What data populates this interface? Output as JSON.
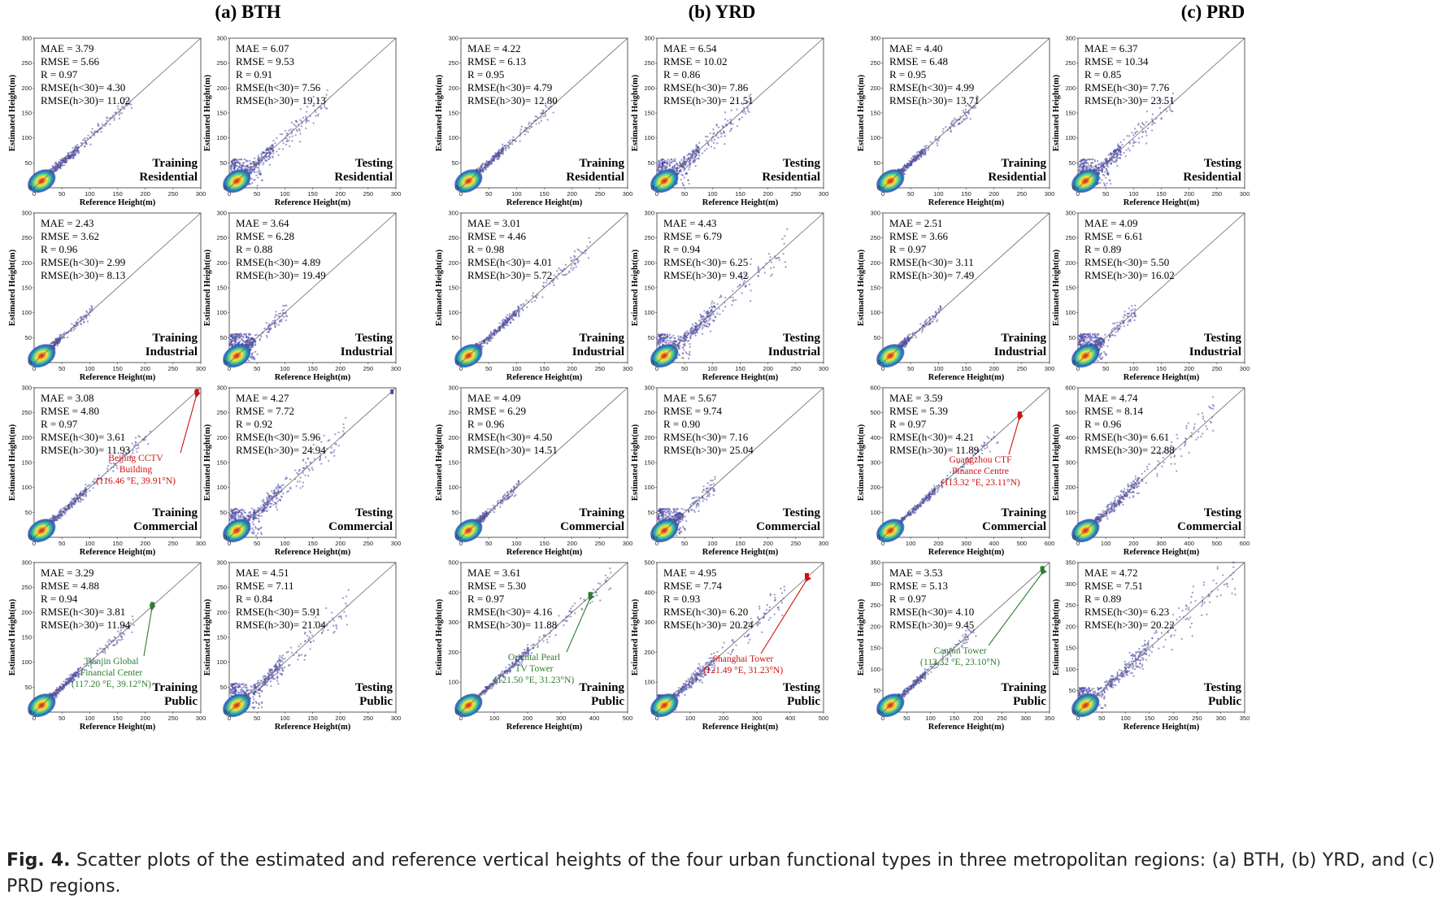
{
  "figure": {
    "region_titles": [
      "(a) BTH",
      "(b) YRD",
      "(c) PRD"
    ],
    "xlabel": "Reference Height(m)",
    "ylabel": "Estimated Height(m)",
    "caption": {
      "label": "Fig. 4.",
      "text": "Scatter plots of the estimated and reference vertical heights of the four urban functional types in three metropolitan regions: (a) BTH, (b) YRD, and (c) PRD regions."
    }
  },
  "chart_data": [
    {
      "type": "scatter",
      "region": "BTH",
      "set": "Training",
      "category": "Residential",
      "axis_max": 300,
      "ticks": [
        0,
        50,
        100,
        150,
        200,
        250,
        300
      ],
      "metrics": {
        "MAE": "3.79",
        "RMSE": "5.66",
        "R": "0.97",
        "RMSE(h<30)": "4.30",
        "RMSE(h>30)": "11.02"
      },
      "max_ref": 178
    },
    {
      "type": "scatter",
      "region": "BTH",
      "set": "Testing",
      "category": "Residential",
      "axis_max": 300,
      "ticks": [
        0,
        50,
        100,
        150,
        200,
        250,
        300
      ],
      "metrics": {
        "MAE": "6.07",
        "RMSE": "9.53",
        "R": "0.91",
        "RMSE(h<30)": "7.56",
        "RMSE(h>30)": "19.13"
      },
      "max_ref": 178
    },
    {
      "type": "scatter",
      "region": "YRD",
      "set": "Training",
      "category": "Residential",
      "axis_max": 300,
      "ticks": [
        0,
        50,
        100,
        150,
        200,
        250,
        300
      ],
      "metrics": {
        "MAE": "4.22",
        "RMSE": "6.13",
        "R": "0.95",
        "RMSE(h<30)": "4.79",
        "RMSE(h>30)": "12.80"
      },
      "max_ref": 170
    },
    {
      "type": "scatter",
      "region": "YRD",
      "set": "Testing",
      "category": "Residential",
      "axis_max": 300,
      "ticks": [
        0,
        50,
        100,
        150,
        200,
        250,
        300
      ],
      "metrics": {
        "MAE": "6.54",
        "RMSE": "10.02",
        "R": "0.86",
        "RMSE(h<30)": "7.86",
        "RMSE(h>30)": "21.51"
      },
      "max_ref": 170
    },
    {
      "type": "scatter",
      "region": "PRD",
      "set": "Training",
      "category": "Residential",
      "axis_max": 300,
      "ticks": [
        0,
        50,
        100,
        150,
        200,
        250,
        300
      ],
      "metrics": {
        "MAE": "4.40",
        "RMSE": "6.48",
        "R": "0.95",
        "RMSE(h<30)": "4.99",
        "RMSE(h>30)": "13.71"
      },
      "max_ref": 172
    },
    {
      "type": "scatter",
      "region": "PRD",
      "set": "Testing",
      "category": "Residential",
      "axis_max": 300,
      "ticks": [
        0,
        50,
        100,
        150,
        200,
        250,
        300
      ],
      "metrics": {
        "MAE": "6.37",
        "RMSE": "10.34",
        "R": "0.85",
        "RMSE(h<30)": "7.76",
        "RMSE(h>30)": "23.51"
      },
      "max_ref": 172
    },
    {
      "type": "scatter",
      "region": "BTH",
      "set": "Training",
      "category": "Industrial",
      "axis_max": 300,
      "ticks": [
        0,
        50,
        100,
        150,
        200,
        250,
        300
      ],
      "metrics": {
        "MAE": "2.43",
        "RMSE": "3.62",
        "R": "0.96",
        "RMSE(h<30)": "2.99",
        "RMSE(h>30)": "8.13"
      },
      "max_ref": 105
    },
    {
      "type": "scatter",
      "region": "BTH",
      "set": "Testing",
      "category": "Industrial",
      "axis_max": 300,
      "ticks": [
        0,
        50,
        100,
        150,
        200,
        250,
        300
      ],
      "metrics": {
        "MAE": "3.64",
        "RMSE": "6.28",
        "R": "0.88",
        "RMSE(h<30)": "4.89",
        "RMSE(h>30)": "19.49"
      },
      "max_ref": 105
    },
    {
      "type": "scatter",
      "region": "YRD",
      "set": "Training",
      "category": "Industrial",
      "axis_max": 300,
      "ticks": [
        0,
        50,
        100,
        150,
        200,
        250,
        300
      ],
      "metrics": {
        "MAE": "3.01",
        "RMSE": "4.46",
        "R": "0.98",
        "RMSE(h<30)": "4.01",
        "RMSE(h>30)": "5.72"
      },
      "max_ref": 235
    },
    {
      "type": "scatter",
      "region": "YRD",
      "set": "Testing",
      "category": "Industrial",
      "axis_max": 300,
      "ticks": [
        0,
        50,
        100,
        150,
        200,
        250,
        300
      ],
      "metrics": {
        "MAE": "4.43",
        "RMSE": "6.79",
        "R": "0.94",
        "RMSE(h<30)": "6.25",
        "RMSE(h>30)": "9.42"
      },
      "max_ref": 235
    },
    {
      "type": "scatter",
      "region": "PRD",
      "set": "Training",
      "category": "Industrial",
      "axis_max": 300,
      "ticks": [
        0,
        50,
        100,
        150,
        200,
        250,
        300
      ],
      "metrics": {
        "MAE": "2.51",
        "RMSE": "3.66",
        "R": "0.97",
        "RMSE(h<30)": "3.11",
        "RMSE(h>30)": "7.49"
      },
      "max_ref": 105
    },
    {
      "type": "scatter",
      "region": "PRD",
      "set": "Testing",
      "category": "Industrial",
      "axis_max": 300,
      "ticks": [
        0,
        50,
        100,
        150,
        200,
        250,
        300
      ],
      "metrics": {
        "MAE": "4.09",
        "RMSE": "6.61",
        "R": "0.89",
        "RMSE(h<30)": "5.50",
        "RMSE(h>30)": "16.02"
      },
      "max_ref": 105
    },
    {
      "type": "scatter",
      "region": "BTH",
      "set": "Training",
      "category": "Commercial",
      "axis_max": 300,
      "ticks": [
        0,
        50,
        100,
        150,
        200,
        250,
        300
      ],
      "metrics": {
        "MAE": "3.08",
        "RMSE": "4.80",
        "R": "0.97",
        "RMSE(h<30)": "3.61",
        "RMSE(h>30)": "11.93"
      },
      "max_ref": 210,
      "highlight": {
        "ref": 293,
        "est": 292,
        "color": "#cc1111",
        "name": "Beijing CCTV Building",
        "coord": "(116.46 °E, 39.91°N)"
      }
    },
    {
      "type": "scatter",
      "region": "BTH",
      "set": "Testing",
      "category": "Commercial",
      "axis_max": 300,
      "ticks": [
        0,
        50,
        100,
        150,
        200,
        250,
        300
      ],
      "metrics": {
        "MAE": "4.27",
        "RMSE": "7.72",
        "R": "0.92",
        "RMSE(h<30)": "5.96",
        "RMSE(h>30)": "24.94"
      },
      "max_ref": 210,
      "outlier": {
        "ref": 293,
        "est": 292
      }
    },
    {
      "type": "scatter",
      "region": "YRD",
      "set": "Training",
      "category": "Commercial",
      "axis_max": 300,
      "ticks": [
        0,
        50,
        100,
        150,
        200,
        250,
        300
      ],
      "metrics": {
        "MAE": "4.09",
        "RMSE": "6.29",
        "R": "0.96",
        "RMSE(h<30)": "4.50",
        "RMSE(h>30)": "14.51"
      },
      "max_ref": 105
    },
    {
      "type": "scatter",
      "region": "YRD",
      "set": "Testing",
      "category": "Commercial",
      "axis_max": 300,
      "ticks": [
        0,
        50,
        100,
        150,
        200,
        250,
        300
      ],
      "metrics": {
        "MAE": "5.67",
        "RMSE": "9.74",
        "R": "0.90",
        "RMSE(h<30)": "7.16",
        "RMSE(h>30)": "25.04"
      },
      "max_ref": 105
    },
    {
      "type": "scatter",
      "region": "PRD",
      "set": "Training",
      "category": "Commercial",
      "axis_max": 600,
      "ticks": [
        0,
        100,
        200,
        300,
        400,
        500,
        600
      ],
      "metrics": {
        "MAE": "3.59",
        "RMSE": "5.39",
        "R": "0.97",
        "RMSE(h<30)": "4.21",
        "RMSE(h>30)": "11.89"
      },
      "max_ref": 420,
      "highlight": {
        "ref": 493,
        "est": 493,
        "color": "#cc1111",
        "name": "Guangzhou CTF Finance Centre",
        "coord": "(113.32 °E, 23.11°N)"
      }
    },
    {
      "type": "scatter",
      "region": "PRD",
      "set": "Testing",
      "category": "Commercial",
      "axis_max": 600,
      "ticks": [
        0,
        100,
        200,
        300,
        400,
        500,
        600
      ],
      "metrics": {
        "MAE": "4.74",
        "RMSE": "8.14",
        "R": "0.96",
        "RMSE(h<30)": "6.61",
        "RMSE(h>30)": "22.88"
      },
      "max_ref": 495
    },
    {
      "type": "scatter",
      "region": "BTH",
      "set": "Training",
      "category": "Public",
      "axis_max": 300,
      "ticks": [
        0,
        50,
        100,
        150,
        200,
        250,
        300
      ],
      "metrics": {
        "MAE": "3.29",
        "RMSE": "4.88",
        "R": "0.94",
        "RMSE(h<30)": "3.81",
        "RMSE(h>30)": "11.94"
      },
      "max_ref": 180,
      "highlight": {
        "ref": 213,
        "est": 215,
        "color": "#2e7d2e",
        "name": "Tianjin Global Financial Center",
        "coord": "(117.20 °E, 39.12°N)"
      }
    },
    {
      "type": "scatter",
      "region": "BTH",
      "set": "Testing",
      "category": "Public",
      "axis_max": 300,
      "ticks": [
        0,
        50,
        100,
        150,
        200,
        250,
        300
      ],
      "metrics": {
        "MAE": "4.51",
        "RMSE": "7.11",
        "R": "0.84",
        "RMSE(h<30)": "5.91",
        "RMSE(h>30)": "21.04"
      },
      "max_ref": 215
    },
    {
      "type": "scatter",
      "region": "YRD",
      "set": "Training",
      "category": "Public",
      "axis_max": 500,
      "ticks": [
        0,
        100,
        200,
        300,
        400,
        500
      ],
      "metrics": {
        "MAE": "3.61",
        "RMSE": "5.30",
        "R": "0.97",
        "RMSE(h<30)": "4.16",
        "RMSE(h>30)": "11.88"
      },
      "max_ref": 455,
      "highlight": {
        "ref": 388,
        "est": 392,
        "color": "#2e7d2e",
        "name": "Oriental Pearl TV Tower",
        "coord": "(121.50 °E, 31.23°N)"
      }
    },
    {
      "type": "scatter",
      "region": "YRD",
      "set": "Testing",
      "category": "Public",
      "axis_max": 500,
      "ticks": [
        0,
        100,
        200,
        300,
        400,
        500
      ],
      "metrics": {
        "MAE": "4.95",
        "RMSE": "7.74",
        "R": "0.93",
        "RMSE(h<30)": "6.20",
        "RMSE(h>30)": "20.24"
      },
      "max_ref": 390,
      "highlight": {
        "ref": 450,
        "est": 455,
        "color": "#cc1111",
        "name": "Shanghai Tower",
        "coord": "(121.49 °E, 31.23°N)"
      }
    },
    {
      "type": "scatter",
      "region": "PRD",
      "set": "Training",
      "category": "Public",
      "axis_max": 350,
      "ticks": [
        0,
        50,
        100,
        150,
        200,
        250,
        300,
        350
      ],
      "metrics": {
        "MAE": "3.53",
        "RMSE": "5.13",
        "R": "0.97",
        "RMSE(h<30)": "4.10",
        "RMSE(h>30)": "9.45"
      },
      "max_ref": 200,
      "highlight": {
        "ref": 335,
        "est": 335,
        "color": "#2e7d2e",
        "name": "Canton Tower",
        "coord": "(113.32 °E, 23.10°N)"
      }
    },
    {
      "type": "scatter",
      "region": "PRD",
      "set": "Testing",
      "category": "Public",
      "axis_max": 350,
      "ticks": [
        0,
        50,
        100,
        150,
        200,
        250,
        300,
        350
      ],
      "metrics": {
        "MAE": "4.72",
        "RMSE": "7.51",
        "R": "0.89",
        "RMSE(h<30)": "6.23",
        "RMSE(h>30)": "20.22"
      },
      "max_ref": 335
    }
  ]
}
